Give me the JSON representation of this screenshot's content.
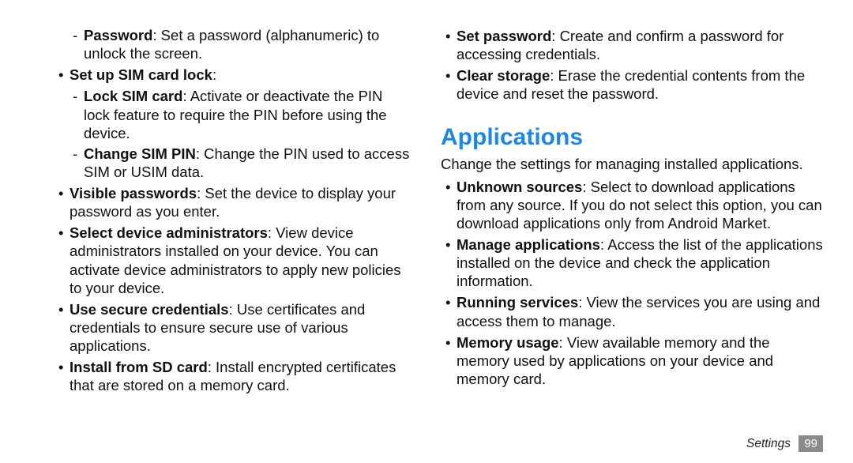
{
  "left": {
    "items": [
      {
        "kind": "dash",
        "bold": "Password",
        "rest": ": Set a password (alphanumeric) to unlock the screen."
      },
      {
        "kind": "bullet",
        "bold": "Set up SIM card lock",
        "rest": ":"
      },
      {
        "kind": "dash",
        "bold": "Lock SIM card",
        "rest": ": Activate or deactivate the PIN lock feature to require the PIN before using the device."
      },
      {
        "kind": "dash",
        "bold": "Change SIM PIN",
        "rest": ": Change the PIN used to access SIM or USIM data."
      },
      {
        "kind": "bullet",
        "bold": "Visible passwords",
        "rest": ": Set the device to display your password as you enter."
      },
      {
        "kind": "bullet",
        "bold": "Select device administrators",
        "rest": ": View device administrators installed on your device. You can activate device administrators to apply new policies to your device."
      },
      {
        "kind": "bullet",
        "bold": "Use secure credentials",
        "rest": ": Use certificates and credentials to ensure secure use of various applications."
      },
      {
        "kind": "bullet",
        "bold": "Install from SD card",
        "rest": ": Install encrypted certificates that are stored on a memory card."
      }
    ]
  },
  "right": {
    "top_items": [
      {
        "kind": "bullet",
        "bold": "Set password",
        "rest": ": Create and confirm a password for accessing credentials."
      },
      {
        "kind": "bullet",
        "bold": "Clear storage",
        "rest": ": Erase the credential contents from the device and reset the password."
      }
    ],
    "heading": "Applications",
    "heading_color": "#1e87e6",
    "intro": "Change the settings for managing installed applications.",
    "app_items": [
      {
        "kind": "bullet",
        "bold": "Unknown sources",
        "rest": ": Select to download applications from any source. If you do not select this option, you can download applications only from Android Market."
      },
      {
        "kind": "bullet",
        "bold": "Manage applications",
        "rest": ": Access the list of the applications installed on the device and check the application information."
      },
      {
        "kind": "bullet",
        "bold": "Running services",
        "rest": ": View the services you are using and access them to manage."
      },
      {
        "kind": "bullet",
        "bold": "Memory usage",
        "rest": ": View available memory and the memory used by applications on your device and memory card."
      }
    ]
  },
  "footer": {
    "label": "Settings",
    "page": "99"
  }
}
